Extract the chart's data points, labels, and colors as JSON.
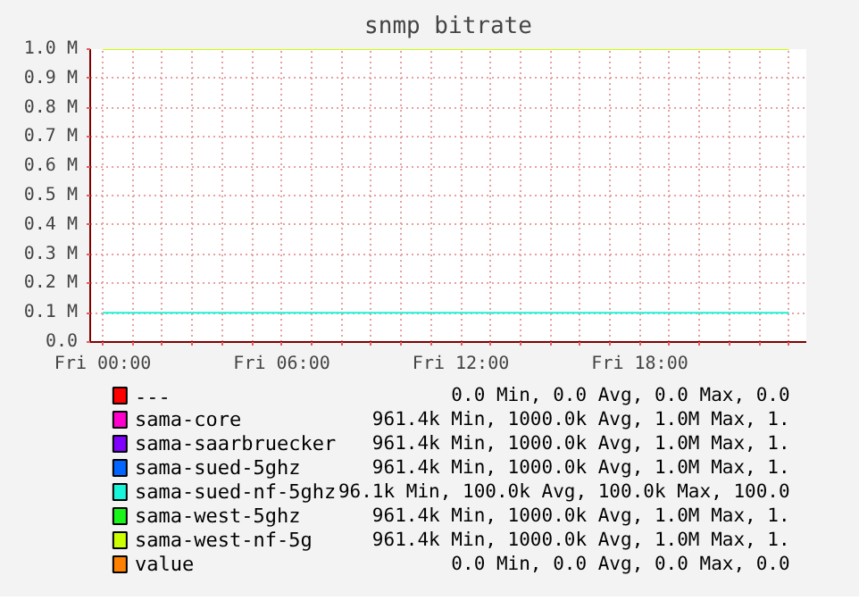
{
  "chart_data": {
    "type": "line",
    "title": "snmp bitrate",
    "categories": [
      "Fri 00:00",
      null,
      null,
      null,
      null,
      null,
      "Fri 06:00",
      null,
      null,
      null,
      null,
      null,
      "Fri 12:00",
      null,
      null,
      null,
      null,
      null,
      "Fri 18:00",
      null,
      null,
      null,
      null,
      null
    ],
    "ylim": [
      0,
      1000000
    ],
    "yticks": [
      {
        "value": 0,
        "label": "0.0"
      },
      {
        "value": 100000,
        "label": "0.1 M"
      },
      {
        "value": 200000,
        "label": "0.2 M"
      },
      {
        "value": 300000,
        "label": "0.3 M"
      },
      {
        "value": 400000,
        "label": "0.4 M"
      },
      {
        "value": 500000,
        "label": "0.5 M"
      },
      {
        "value": 600000,
        "label": "0.6 M"
      },
      {
        "value": 700000,
        "label": "0.7 M"
      },
      {
        "value": 800000,
        "label": "0.8 M"
      },
      {
        "value": 900000,
        "label": "0.9 M"
      },
      {
        "value": 1000000,
        "label": "1.0 M"
      }
    ],
    "grid": true,
    "legend": "bottom",
    "series": [
      {
        "name": "---",
        "color": "#ff0000",
        "values": [
          null,
          null,
          null,
          null,
          null,
          null,
          null,
          null,
          null,
          null,
          null,
          null,
          null,
          null,
          null,
          null,
          null,
          null,
          null,
          null,
          null,
          null,
          null,
          null
        ]
      },
      {
        "name": "sama-core",
        "color": "#ff00cc",
        "values": [
          null,
          null,
          null,
          null,
          null,
          null,
          null,
          null,
          null,
          null,
          null,
          null,
          null,
          null,
          null,
          null,
          null,
          null,
          null,
          null,
          null,
          null,
          null,
          null
        ]
      },
      {
        "name": "sama-saarbruecker",
        "color": "#7f00ff",
        "values": [
          null,
          null,
          null,
          null,
          null,
          null,
          null,
          null,
          null,
          null,
          null,
          null,
          null,
          null,
          null,
          null,
          null,
          null,
          null,
          null,
          null,
          null,
          null,
          null
        ]
      },
      {
        "name": "sama-sued-5ghz",
        "color": "#0066ff",
        "values": [
          null,
          null,
          null,
          null,
          null,
          null,
          null,
          null,
          null,
          null,
          null,
          null,
          null,
          null,
          null,
          null,
          null,
          null,
          null,
          null,
          null,
          null,
          null,
          null
        ]
      },
      {
        "name": "sama-sued-nf-5ghz",
        "color": "#19f5d8",
        "values": [
          100000,
          100000,
          100000,
          100000,
          100000,
          100000,
          100000,
          100000,
          100000,
          100000,
          100000,
          100000,
          100000,
          100000,
          100000,
          100000,
          100000,
          100000,
          100000,
          100000,
          100000,
          100000,
          100000,
          100000
        ]
      },
      {
        "name": "sama-west-5ghz",
        "color": "#19f519",
        "values": [
          null,
          null,
          null,
          null,
          null,
          null,
          null,
          null,
          null,
          null,
          null,
          null,
          null,
          null,
          null,
          null,
          null,
          null,
          null,
          null,
          null,
          null,
          null,
          null
        ]
      },
      {
        "name": "sama-west-nf-5g",
        "color": "#ccff00",
        "values": [
          1000000,
          1000000,
          1000000,
          1000000,
          1000000,
          1000000,
          1000000,
          1000000,
          1000000,
          1000000,
          1000000,
          1000000,
          1000000,
          1000000,
          1000000,
          1000000,
          1000000,
          1000000,
          1000000,
          1000000,
          1000000,
          1000000,
          1000000,
          1000000
        ]
      },
      {
        "name": "value",
        "color": "#ff8000",
        "values": [
          null,
          null,
          null,
          null,
          null,
          null,
          null,
          null,
          null,
          null,
          null,
          null,
          null,
          null,
          null,
          null,
          null,
          null,
          null,
          null,
          null,
          null,
          null,
          null
        ]
      }
    ],
    "annotations": [
      "0.0 Min, 0.0 Avg, 0.0 Max, 0.0",
      "961.4k Min, 1000.0k Avg, 1.0M Max, 1.",
      "961.4k Min, 1000.0k Avg, 1.0M Max, 1.",
      "961.4k Min, 1000.0k Avg, 1.0M Max, 1.",
      "96.1k Min, 100.0k Avg, 100.0k Max, 100.0",
      "961.4k Min, 1000.0k Avg, 1.0M Max, 1.",
      "961.4k Min, 1000.0k Avg, 1.0M Max, 1.",
      "0.0 Min, 0.0 Avg, 0.0 Max, 0.0"
    ]
  }
}
